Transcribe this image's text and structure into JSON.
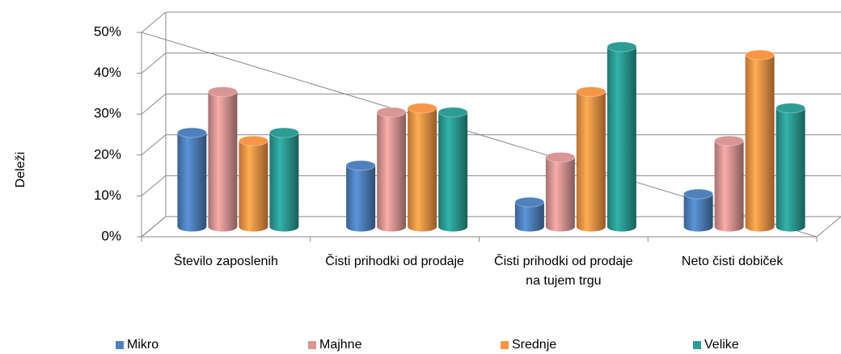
{
  "chart_data": {
    "type": "bar3d",
    "y_label": "Deleži",
    "categories": [
      "Število zaposlenih",
      "Čisti prihodki od prodaje",
      "Čisti prihodki od prodaje na tujem trgu",
      "Neto čisti dobiček"
    ],
    "series": [
      {
        "name": "Mikro",
        "color": "#4f81bd",
        "values": [
          23,
          15,
          6,
          8
        ]
      },
      {
        "name": "Majhne",
        "color": "#d99694",
        "values": [
          33,
          28,
          17,
          21
        ]
      },
      {
        "name": "Srednje",
        "color": "#f79646",
        "values": [
          21,
          29,
          33,
          42
        ]
      },
      {
        "name": "Velike",
        "color": "#2c9c94",
        "values": [
          23,
          28,
          44,
          29
        ]
      }
    ],
    "ylim": [
      0,
      50
    ],
    "yticks": [
      {
        "value": 0,
        "label": "0%"
      },
      {
        "value": 10,
        "label": "10%"
      },
      {
        "value": 20,
        "label": "20%"
      },
      {
        "value": 30,
        "label": "30%"
      },
      {
        "value": 40,
        "label": "40%"
      },
      {
        "value": 50,
        "label": "50%"
      }
    ],
    "grid": true,
    "legend": "bottom"
  }
}
